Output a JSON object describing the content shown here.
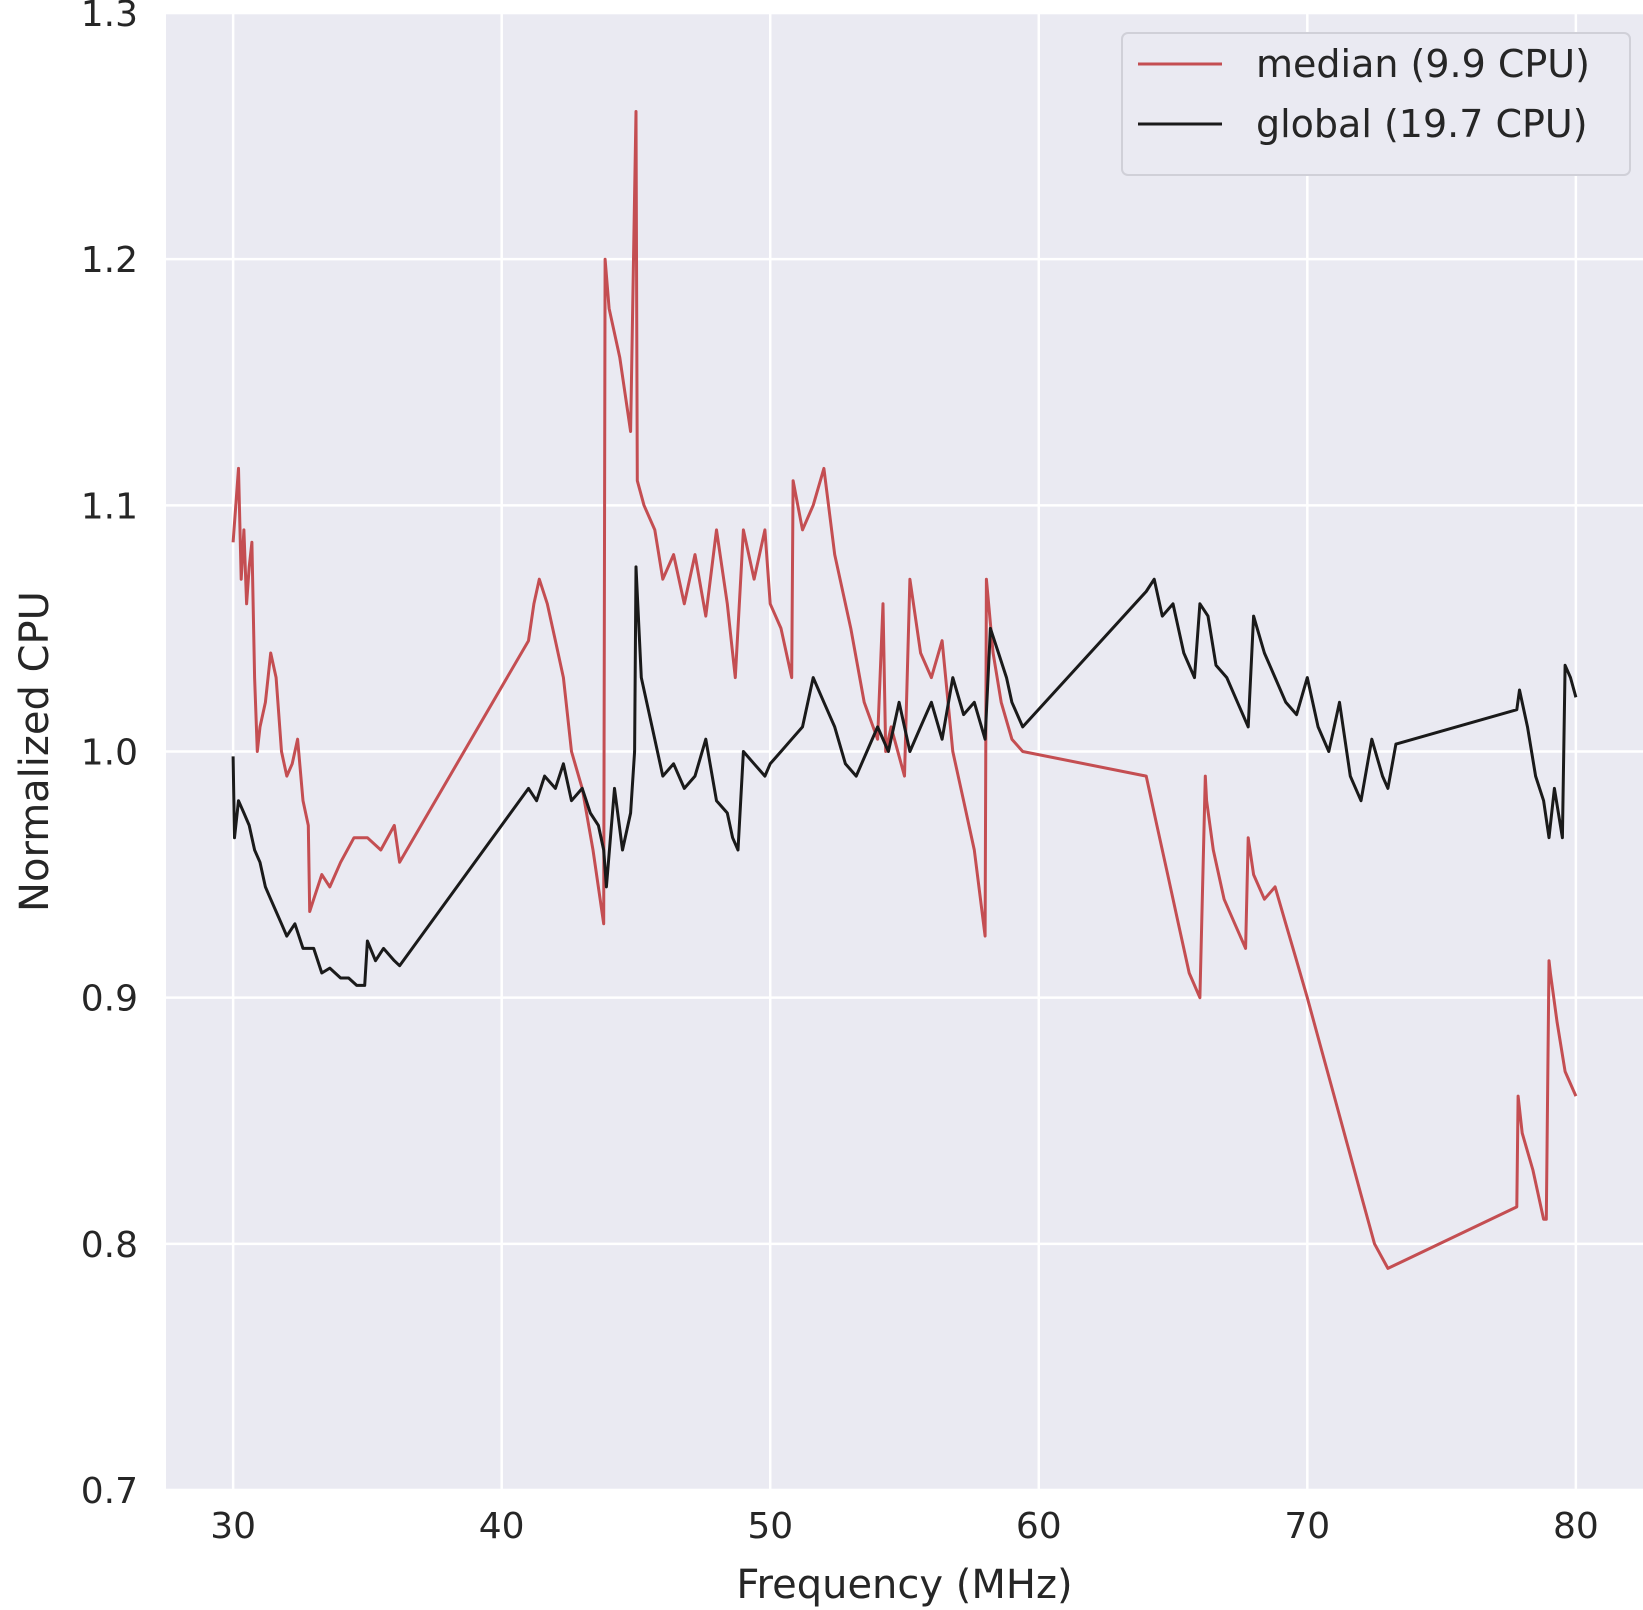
{
  "chart_data": {
    "type": "line",
    "title": "",
    "xlabel": "Frequency (MHz)",
    "ylabel": "Normalized CPU",
    "xlim": [
      27.5,
      82.5
    ],
    "ylim": [
      0.7,
      1.3
    ],
    "xticks": [
      30,
      40,
      50,
      60,
      70,
      80
    ],
    "yticks": [
      0.7,
      0.8,
      0.9,
      1.0,
      1.1,
      1.2,
      1.3
    ],
    "xtick_labels": [
      "30",
      "40",
      "50",
      "60",
      "70",
      "80"
    ],
    "ytick_labels": [
      "0.7",
      "0.8",
      "0.9",
      "1.0",
      "1.1",
      "1.2",
      "1.3"
    ],
    "grid": true,
    "legend_position": "top-right",
    "background": "#eaeaf2",
    "series": [
      {
        "name": "median (9.9 CPU)",
        "color": "#c44e52",
        "x": [
          30.0,
          30.1,
          30.2,
          30.3,
          30.4,
          30.5,
          30.6,
          30.7,
          30.8,
          30.9,
          31.0,
          31.2,
          31.4,
          31.6,
          31.8,
          32.0,
          32.2,
          32.4,
          32.6,
          32.8,
          32.85,
          33.0,
          33.3,
          33.6,
          34.0,
          34.5,
          35.0,
          35.5,
          36.0,
          36.2,
          41.0,
          41.2,
          41.4,
          41.7,
          42.0,
          42.3,
          42.6,
          43.0,
          43.4,
          43.8,
          43.85,
          44.0,
          44.4,
          44.8,
          45.0,
          45.05,
          45.3,
          45.7,
          46.0,
          46.4,
          46.8,
          47.2,
          47.6,
          48.0,
          48.4,
          48.6,
          48.7,
          49.0,
          49.4,
          49.8,
          50.0,
          50.4,
          50.8,
          50.85,
          51.2,
          51.6,
          52.0,
          52.4,
          53.0,
          53.5,
          54.0,
          54.2,
          54.3,
          54.5,
          55.0,
          55.2,
          55.6,
          56.0,
          56.4,
          56.8,
          57.2,
          57.6,
          58.0,
          58.05,
          58.3,
          58.6,
          59.0,
          59.4,
          64.0,
          64.4,
          64.8,
          65.2,
          65.6,
          66.0,
          66.2,
          66.25,
          66.5,
          66.9,
          67.3,
          67.7,
          67.8,
          68.0,
          68.4,
          68.8,
          69.2,
          69.6,
          70.0,
          70.5,
          71.0,
          71.5,
          72.0,
          72.5,
          73.0,
          77.8,
          77.85,
          78.0,
          78.4,
          78.8,
          78.9,
          79.0,
          79.05,
          79.3,
          79.6,
          80.0
        ],
        "y": [
          1.085,
          1.1,
          1.115,
          1.07,
          1.09,
          1.06,
          1.075,
          1.085,
          1.03,
          1.0,
          1.01,
          1.02,
          1.04,
          1.03,
          1.0,
          0.99,
          0.995,
          1.005,
          0.98,
          0.97,
          0.935,
          0.94,
          0.95,
          0.945,
          0.955,
          0.965,
          0.965,
          0.96,
          0.97,
          0.955,
          1.045,
          1.06,
          1.07,
          1.06,
          1.045,
          1.03,
          1.0,
          0.985,
          0.96,
          0.93,
          1.2,
          1.18,
          1.16,
          1.13,
          1.26,
          1.11,
          1.1,
          1.09,
          1.07,
          1.08,
          1.06,
          1.08,
          1.055,
          1.09,
          1.06,
          1.04,
          1.03,
          1.09,
          1.07,
          1.09,
          1.06,
          1.05,
          1.03,
          1.11,
          1.09,
          1.1,
          1.115,
          1.08,
          1.05,
          1.02,
          1.005,
          1.06,
          1.0,
          1.01,
          0.99,
          1.07,
          1.04,
          1.03,
          1.045,
          1.0,
          0.98,
          0.96,
          0.925,
          1.07,
          1.04,
          1.02,
          1.005,
          1.0,
          0.99,
          0.97,
          0.95,
          0.93,
          0.91,
          0.9,
          0.99,
          0.98,
          0.96,
          0.94,
          0.93,
          0.92,
          0.965,
          0.95,
          0.94,
          0.945,
          0.93,
          0.915,
          0.9,
          0.88,
          0.86,
          0.84,
          0.82,
          0.8,
          0.79,
          0.815,
          0.86,
          0.845,
          0.83,
          0.81,
          0.81,
          0.915,
          0.91,
          0.89,
          0.87,
          0.86
        ]
      },
      {
        "name": "global (19.7 CPU)",
        "color": "#1a1a1a",
        "x": [
          30.0,
          30.05,
          30.2,
          30.4,
          30.6,
          30.8,
          31.0,
          31.2,
          31.4,
          31.6,
          31.8,
          32.0,
          32.3,
          32.6,
          33.0,
          33.3,
          33.6,
          34.0,
          34.3,
          34.6,
          34.9,
          35.0,
          35.3,
          35.6,
          36.0,
          36.2,
          41.0,
          41.3,
          41.6,
          42.0,
          42.3,
          42.6,
          43.0,
          43.3,
          43.6,
          43.8,
          43.9,
          44.2,
          44.5,
          44.8,
          44.95,
          45.0,
          45.2,
          45.6,
          46.0,
          46.4,
          46.8,
          47.2,
          47.6,
          48.0,
          48.4,
          48.6,
          48.8,
          49.0,
          49.4,
          49.8,
          50.0,
          50.4,
          50.8,
          51.2,
          51.6,
          52.0,
          52.4,
          52.8,
          53.2,
          53.6,
          54.0,
          54.4,
          54.8,
          55.2,
          55.6,
          56.0,
          56.4,
          56.8,
          57.2,
          57.6,
          58.0,
          58.2,
          58.5,
          58.8,
          59.0,
          59.4,
          64.0,
          64.3,
          64.6,
          65.0,
          65.4,
          65.8,
          66.0,
          66.3,
          66.6,
          67.0,
          67.4,
          67.8,
          68.0,
          68.4,
          68.8,
          69.2,
          69.6,
          70.0,
          70.4,
          70.8,
          71.2,
          71.6,
          72.0,
          72.4,
          72.8,
          73.0,
          73.3,
          77.8,
          77.9,
          78.2,
          78.5,
          78.8,
          79.0,
          79.2,
          79.5,
          79.6,
          79.8,
          80.0
        ],
        "y": [
          0.998,
          0.965,
          0.98,
          0.975,
          0.97,
          0.96,
          0.955,
          0.945,
          0.94,
          0.935,
          0.93,
          0.925,
          0.93,
          0.92,
          0.92,
          0.91,
          0.912,
          0.908,
          0.908,
          0.905,
          0.905,
          0.923,
          0.915,
          0.92,
          0.915,
          0.913,
          0.985,
          0.98,
          0.99,
          0.985,
          0.995,
          0.98,
          0.985,
          0.975,
          0.97,
          0.96,
          0.945,
          0.985,
          0.96,
          0.975,
          1.0,
          1.075,
          1.03,
          1.01,
          0.99,
          0.995,
          0.985,
          0.99,
          1.005,
          0.98,
          0.975,
          0.965,
          0.96,
          1.0,
          0.995,
          0.99,
          0.995,
          1.0,
          1.005,
          1.01,
          1.03,
          1.02,
          1.01,
          0.995,
          0.99,
          1.0,
          1.01,
          1.0,
          1.02,
          1.0,
          1.01,
          1.02,
          1.005,
          1.03,
          1.015,
          1.02,
          1.005,
          1.05,
          1.04,
          1.03,
          1.02,
          1.01,
          1.065,
          1.07,
          1.055,
          1.06,
          1.04,
          1.03,
          1.06,
          1.055,
          1.035,
          1.03,
          1.02,
          1.01,
          1.055,
          1.04,
          1.03,
          1.02,
          1.015,
          1.03,
          1.01,
          1.0,
          1.02,
          0.99,
          0.98,
          1.005,
          0.99,
          0.985,
          1.003,
          1.017,
          1.025,
          1.01,
          0.99,
          0.98,
          0.965,
          0.985,
          0.965,
          1.035,
          1.03,
          1.022
        ]
      }
    ]
  }
}
